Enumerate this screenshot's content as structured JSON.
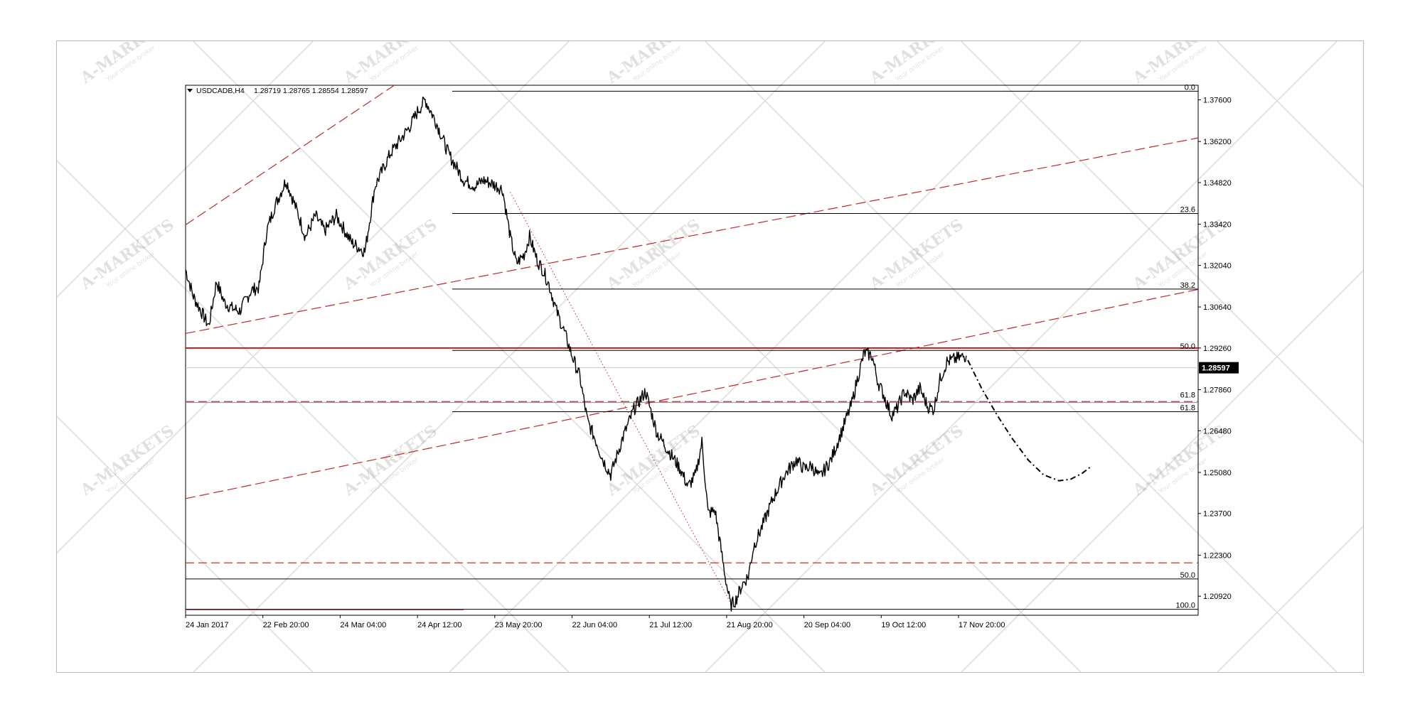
{
  "chart_data": {
    "type": "line",
    "style": "candlestick",
    "title": "USDCADB,H4",
    "ohlc_text": "1.28719 1.28765 1.28554 1.28597",
    "last_price": 1.28597,
    "last_price_label": "1.28597",
    "ylim": [
      1.2028,
      1.3809
    ],
    "y_ticks": [
      {
        "value": 1.376,
        "label": "1.37600"
      },
      {
        "value": 1.362,
        "label": "1.36200"
      },
      {
        "value": 1.3482,
        "label": "1.34820"
      },
      {
        "value": 1.3342,
        "label": "1.33420"
      },
      {
        "value": 1.3204,
        "label": "1.32040"
      },
      {
        "value": 1.3064,
        "label": "1.30640"
      },
      {
        "value": 1.2926,
        "label": "1.29260"
      },
      {
        "value": 1.2786,
        "label": "1.27860"
      },
      {
        "value": 1.2648,
        "label": "1.26480"
      },
      {
        "value": 1.2508,
        "label": "1.25080"
      },
      {
        "value": 1.237,
        "label": "1.23700"
      },
      {
        "value": 1.223,
        "label": "1.22300"
      },
      {
        "value": 1.2092,
        "label": "1.20920"
      }
    ],
    "x_ticks": [
      {
        "index": 0,
        "label": "24 Jan 2017"
      },
      {
        "index": 100,
        "label": "22 Feb 20:00"
      },
      {
        "index": 200,
        "label": "24 Mar 04:00"
      },
      {
        "index": 300,
        "label": "24 Apr 12:00"
      },
      {
        "index": 400,
        "label": "23 May 20:00"
      },
      {
        "index": 500,
        "label": "22 Jun 04:00"
      },
      {
        "index": 600,
        "label": "21 Jul 12:00"
      },
      {
        "index": 700,
        "label": "21 Aug 20:00"
      },
      {
        "index": 800,
        "label": "20 Sep 04:00"
      },
      {
        "index": 900,
        "label": "19 Oct 12:00"
      },
      {
        "index": 1000,
        "label": "17 Nov 20:00"
      }
    ],
    "bars_total": 1310,
    "price_path": [
      [
        0,
        1.319
      ],
      [
        10,
        1.31
      ],
      [
        20,
        1.305
      ],
      [
        30,
        1.3
      ],
      [
        40,
        1.315
      ],
      [
        50,
        1.308
      ],
      [
        60,
        1.306
      ],
      [
        70,
        1.305
      ],
      [
        85,
        1.312
      ],
      [
        95,
        1.313
      ],
      [
        105,
        1.332
      ],
      [
        115,
        1.34
      ],
      [
        130,
        1.349
      ],
      [
        145,
        1.338
      ],
      [
        155,
        1.33
      ],
      [
        168,
        1.337
      ],
      [
        180,
        1.332
      ],
      [
        195,
        1.337
      ],
      [
        215,
        1.328
      ],
      [
        232,
        1.325
      ],
      [
        245,
        1.347
      ],
      [
        265,
        1.358
      ],
      [
        290,
        1.367
      ],
      [
        300,
        1.372
      ],
      [
        310,
        1.376
      ],
      [
        325,
        1.368
      ],
      [
        340,
        1.358
      ],
      [
        360,
        1.349
      ],
      [
        375,
        1.347
      ],
      [
        385,
        1.349
      ],
      [
        395,
        1.348
      ],
      [
        410,
        1.346
      ],
      [
        420,
        1.33
      ],
      [
        428,
        1.321
      ],
      [
        438,
        1.324
      ],
      [
        445,
        1.33
      ],
      [
        455,
        1.322
      ],
      [
        462,
        1.319
      ],
      [
        470,
        1.314
      ],
      [
        480,
        1.305
      ],
      [
        490,
        1.298
      ],
      [
        500,
        1.29
      ],
      [
        510,
        1.283
      ],
      [
        520,
        1.268
      ],
      [
        530,
        1.262
      ],
      [
        540,
        1.255
      ],
      [
        550,
        1.25
      ],
      [
        565,
        1.262
      ],
      [
        580,
        1.272
      ],
      [
        595,
        1.278
      ],
      [
        610,
        1.264
      ],
      [
        625,
        1.258
      ],
      [
        640,
        1.252
      ],
      [
        650,
        1.246
      ],
      [
        660,
        1.25
      ],
      [
        668,
        1.261
      ],
      [
        676,
        1.237
      ],
      [
        685,
        1.238
      ],
      [
        698,
        1.216
      ],
      [
        705,
        1.206
      ],
      [
        712,
        1.208
      ],
      [
        720,
        1.213
      ],
      [
        728,
        1.216
      ],
      [
        735,
        1.226
      ],
      [
        745,
        1.232
      ],
      [
        760,
        1.242
      ],
      [
        775,
        1.25
      ],
      [
        790,
        1.255
      ],
      [
        800,
        1.252
      ],
      [
        810,
        1.253
      ],
      [
        820,
        1.249
      ],
      [
        835,
        1.255
      ],
      [
        848,
        1.264
      ],
      [
        862,
        1.274
      ],
      [
        868,
        1.281
      ],
      [
        878,
        1.291
      ],
      [
        888,
        1.29
      ],
      [
        896,
        1.281
      ],
      [
        903,
        1.277
      ],
      [
        913,
        1.27
      ],
      [
        920,
        1.272
      ],
      [
        930,
        1.278
      ],
      [
        940,
        1.275
      ],
      [
        950,
        1.279
      ],
      [
        960,
        1.273
      ],
      [
        968,
        1.272
      ],
      [
        976,
        1.282
      ],
      [
        985,
        1.288
      ],
      [
        1010,
        1.29
      ]
    ],
    "projection": [
      [
        1012,
        1.2885
      ],
      [
        1030,
        1.279
      ],
      [
        1050,
        1.27
      ],
      [
        1070,
        1.262
      ],
      [
        1090,
        1.255
      ],
      [
        1110,
        1.25
      ],
      [
        1130,
        1.248
      ],
      [
        1145,
        1.2485
      ],
      [
        1160,
        1.2505
      ],
      [
        1170,
        1.2525
      ]
    ],
    "fib_top": [
      {
        "value": 1.3789,
        "label": "0.0"
      },
      {
        "value": 1.3378,
        "label": "23.6"
      },
      {
        "value": 1.3124,
        "label": "38.2"
      },
      {
        "value": 1.2918,
        "label": "50.0"
      },
      {
        "value": 1.2712,
        "label": "61.8"
      }
    ],
    "fib_bottom": [
      {
        "value": 1.215,
        "label": "50.0"
      },
      {
        "value": 1.2048,
        "label": "100.0"
      }
    ],
    "fib_extra_label": "61.8",
    "horizontal_levels": [
      {
        "value": 1.2926,
        "style": "solid",
        "color": "#d40000"
      },
      {
        "value": 1.2746,
        "style": "dashed",
        "color": "#b0303a"
      },
      {
        "value": 1.2743,
        "style": "solid",
        "color": "#9a9a9a"
      },
      {
        "value": 1.2204,
        "style": "dashed",
        "color": "#c83232"
      },
      {
        "value": 1.2046,
        "style": "solid",
        "color": "#e06060"
      }
    ],
    "trendlines": [
      {
        "from": [
          0,
          1.334
        ],
        "to": [
          270,
          1.3809
        ],
        "style": "dashed"
      },
      {
        "from": [
          0,
          1.2975
        ],
        "to": [
          1310,
          1.3632
        ],
        "style": "dashed"
      },
      {
        "from": [
          0,
          1.242
        ],
        "to": [
          1310,
          1.3123
        ],
        "style": "dashed"
      }
    ],
    "dotted_diagonal": {
      "from": [
        420,
        1.345
      ],
      "to": [
        705,
        1.207
      ]
    },
    "grid": false,
    "colors": {
      "price": "#000000",
      "trend": "#c0282e",
      "fib": "#000000",
      "level": "#d40000"
    }
  },
  "watermark": {
    "brand": "A-MARKETS",
    "tagline": "Your online broker"
  }
}
